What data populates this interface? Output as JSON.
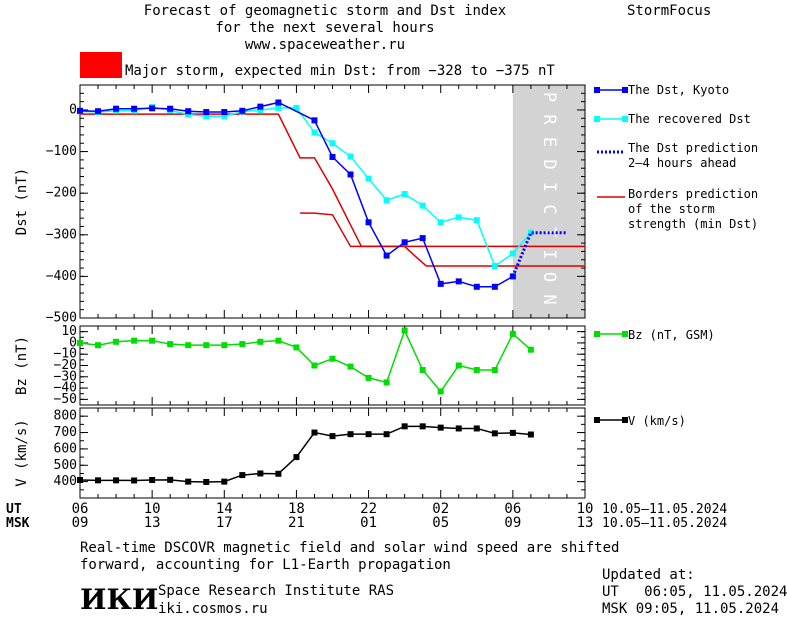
{
  "header": {
    "title_lines": [
      "Forecast of geomagnetic storm and Dst index",
      "for the next several hours",
      "www.spaceweather.ru"
    ],
    "brand": "StormFocus",
    "storm_text": "Major storm, expected min Dst: from −328 to −375 nT",
    "storm_color": "#ff0000"
  },
  "legend": {
    "dst_kyoto": "The Dst, Kyoto",
    "recovered": "The recovered Dst",
    "prediction": [
      "The Dst prediction",
      "2–4 hours ahead"
    ],
    "borders": [
      "Borders prediction",
      "of the storm",
      "strength (min Dst)"
    ],
    "bz": "Bz (nT, GSM)",
    "v": "V (km/s)"
  },
  "colors": {
    "dst": "#0000ff",
    "recovered": "#00ffff",
    "prediction": "#0000ff",
    "borders": "#dd0000",
    "bz": "#00dd00",
    "v": "#000000",
    "shade": "#d3d3d3"
  },
  "shade_label": "PREDICTION",
  "time_axis": {
    "ut_label": "UT",
    "msk_label": "MSK",
    "ut_ticks": [
      "06",
      "10",
      "14",
      "18",
      "22",
      "02",
      "06",
      "10"
    ],
    "msk_ticks": [
      "09",
      "13",
      "17",
      "21",
      "01",
      "05",
      "09",
      "13"
    ],
    "ut_range": "10.05–11.05.2024",
    "msk_range": "10.05–11.05.2024"
  },
  "footer": {
    "note_lines": [
      "Real-time DSCOVR magnetic field and solar wind speed are shifted",
      "forward, accounting for L1-Earth propagation"
    ],
    "institute": "Space Research Institute RAS",
    "site": "iki.cosmos.ru",
    "logo": "ИКИ",
    "updated_label": "Updated at:",
    "updated_ut": "UT   06:05, 11.05.2024",
    "updated_msk": "MSK 09:05, 11.05.2024"
  },
  "chart_data": [
    {
      "type": "line",
      "ylabel": "Dst (nT)",
      "xlim": [
        6,
        34
      ],
      "ylim": [
        -500,
        40
      ],
      "yticks": [
        "0",
        "−100",
        "−200",
        "−300",
        "−400",
        "−500"
      ],
      "prediction_band": [
        30,
        34
      ],
      "series": [
        {
          "name": "The Dst, Kyoto",
          "x": [
            6,
            7,
            8,
            9,
            10,
            11,
            12,
            13,
            14,
            15,
            16,
            17,
            19,
            20,
            21,
            22,
            23,
            24,
            25,
            26,
            27,
            28,
            29,
            30
          ],
          "values": [
            -2,
            -3,
            3,
            3,
            4,
            3,
            -3,
            -5,
            -5,
            -2,
            8,
            18,
            -25,
            -113,
            -155,
            -270,
            -350,
            -318,
            -308,
            -418,
            -412,
            -425,
            -425,
            -400
          ]
        },
        {
          "name": "The recovered Dst",
          "x": [
            6,
            7,
            8,
            9,
            10,
            11,
            12,
            13,
            14,
            15,
            16,
            17,
            18,
            19,
            20,
            21,
            22,
            23,
            24,
            25,
            26,
            27,
            28,
            29,
            30,
            31
          ],
          "values": [
            -3,
            -5,
            -2,
            -2,
            7,
            -1,
            -11,
            -15,
            -15,
            -4,
            0,
            5,
            5,
            -54,
            -80,
            -112,
            -165,
            -217,
            -202,
            -230,
            -270,
            -258,
            -265,
            -375,
            -345,
            -295
          ]
        },
        {
          "name": "The Dst prediction 2–4 hours ahead",
          "x": [
            30,
            31,
            33
          ],
          "values": [
            -400,
            -295,
            -295
          ]
        },
        {
          "name": "Borders prediction of the storm strength (min Dst)",
          "x": [
            6,
            17,
            18.2,
            19,
            20,
            21.6,
            23,
            24,
            24.6,
            25.2,
            26,
            27,
            28,
            29,
            30,
            34
          ],
          "values": [
            -10,
            -10,
            -115,
            -115,
            -190,
            -328,
            -328,
            -328,
            -352,
            -375,
            -375,
            -375,
            -375,
            -375,
            -375,
            -375
          ]
        },
        {
          "name": "",
          "x": [
            18.2,
            19,
            20,
            21,
            22.6,
            24,
            26,
            28,
            30,
            34
          ],
          "values": [
            -248,
            -248,
            -252,
            -328,
            -328,
            -328,
            -328,
            -328,
            -328,
            -328
          ]
        }
      ]
    },
    {
      "type": "line",
      "ylabel": "Bz (nT)",
      "xlim": [
        6,
        34
      ],
      "ylim": [
        -50,
        10
      ],
      "yticks": [
        "10",
        "0",
        "−10",
        "−20",
        "−30",
        "−40",
        "−50"
      ],
      "series": [
        {
          "name": "Bz (nT, GSM)",
          "x": [
            6,
            7,
            8,
            9,
            10,
            11,
            12,
            13,
            14,
            15,
            16,
            17,
            18,
            19,
            20,
            21,
            22,
            23,
            24,
            25,
            26,
            27,
            28,
            29,
            30,
            31
          ],
          "values": [
            0,
            -2,
            1,
            2,
            2,
            -1,
            -2,
            -2,
            -2,
            -1,
            1,
            2,
            -4,
            -20,
            -14,
            -21,
            -31,
            -35,
            11,
            -24,
            -43,
            -20,
            -24,
            -24,
            8,
            -6
          ]
        }
      ]
    },
    {
      "type": "line",
      "ylabel": "V (km/s)",
      "xlim": [
        6,
        34
      ],
      "ylim": [
        300,
        850
      ],
      "yticks": [
        "800",
        "700",
        "600",
        "500",
        "400"
      ],
      "series": [
        {
          "name": "V (km/s)",
          "x": [
            6,
            7,
            8,
            9,
            10,
            11,
            12,
            13,
            14,
            15,
            16,
            17,
            18,
            19,
            20,
            21,
            22,
            23,
            24,
            25,
            26,
            27,
            28,
            29,
            30,
            31
          ],
          "values": [
            410,
            408,
            408,
            407,
            410,
            411,
            400,
            398,
            400,
            440,
            450,
            448,
            550,
            700,
            678,
            690,
            690,
            690,
            738,
            738,
            730,
            725,
            725,
            695,
            698,
            688
          ]
        }
      ]
    }
  ]
}
